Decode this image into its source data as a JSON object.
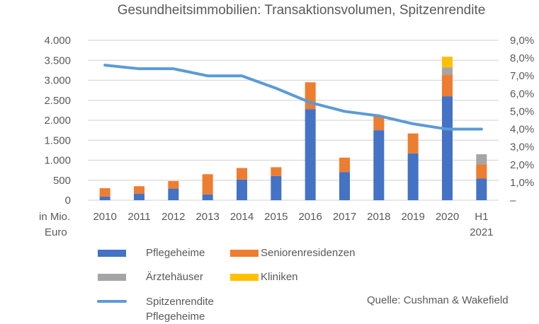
{
  "chart_data": {
    "type": "bar",
    "subtype": "stacked-bar-with-line",
    "title": "Gesundheitsimmobilien: Transaktionsvolumen, Spitzenrendite",
    "xlabel": "",
    "ylabel": "in Mio. Euro",
    "categories": [
      "2010",
      "2011",
      "2012",
      "2013",
      "2014",
      "2015",
      "2016",
      "2017",
      "2018",
      "2019",
      "2020",
      "H1 2021"
    ],
    "ylim": [
      0,
      4000
    ],
    "yticks": [
      0,
      500,
      1000,
      1500,
      2000,
      2500,
      3000,
      3500,
      4000
    ],
    "ytick_labels": [
      "0",
      "500",
      "1.000",
      "1.500",
      "2.000",
      "2.500",
      "3.000",
      "3.500",
      "4.000"
    ],
    "y2lim": [
      0,
      9
    ],
    "y2ticks": [
      0,
      1,
      2,
      3,
      4,
      5,
      6,
      7,
      8,
      9
    ],
    "y2tick_labels": [
      "–",
      "1,0%",
      "2,0%",
      "3,0%",
      "4,0%",
      "5,0%",
      "6,0%",
      "7,0%",
      "8,0%",
      "9,0%"
    ],
    "grid": true,
    "series": [
      {
        "name": "Pflegeheime",
        "kind": "bar",
        "axis": "left",
        "color": "#4472C4",
        "values": [
          90,
          165,
          290,
          145,
          515,
          605,
          2280,
          705,
          1750,
          1170,
          2600,
          540
        ]
      },
      {
        "name": "Seniorenresidenzen",
        "kind": "bar",
        "axis": "left",
        "color": "#ED7D31",
        "values": [
          210,
          185,
          190,
          505,
          290,
          220,
          670,
          360,
          350,
          500,
          540,
          360
        ]
      },
      {
        "name": "Ärztehäuser",
        "kind": "bar",
        "axis": "left",
        "color": "#A5A5A5",
        "values": [
          0,
          0,
          0,
          0,
          0,
          0,
          0,
          0,
          0,
          0,
          180,
          250
        ]
      },
      {
        "name": "Kliniken",
        "kind": "bar",
        "axis": "left",
        "color": "#FFC000",
        "values": [
          0,
          0,
          0,
          0,
          0,
          0,
          0,
          0,
          0,
          0,
          270,
          0
        ]
      },
      {
        "name": "Spitzenrendite Pflegeheime",
        "kind": "line",
        "axis": "right",
        "color": "#5B9BD5",
        "values": [
          7.6,
          7.4,
          7.4,
          7.0,
          7.0,
          6.3,
          5.5,
          5.0,
          4.75,
          4.3,
          4.0,
          4.0
        ]
      }
    ],
    "legend": {
      "placement": "bottom-left",
      "entries": [
        {
          "label": "Pflegeheime",
          "kind": "bar",
          "color": "#4472C4"
        },
        {
          "label": "Seniorenresidenzen",
          "kind": "bar",
          "color": "#ED7D31"
        },
        {
          "label": "Ärztehäuser",
          "kind": "bar",
          "color": "#A5A5A5"
        },
        {
          "label": "Kliniken",
          "kind": "bar",
          "color": "#FFC000"
        },
        {
          "label": "Spitzenrendite Pflegeheime",
          "kind": "line",
          "color": "#5B9BD5"
        }
      ]
    },
    "annotations": [
      "Quelle: Cushman & Wakefield"
    ]
  },
  "labels": {
    "y_unit_line1": "in Mio.",
    "y_unit_line2": "Euro",
    "last_category_line1": "H1",
    "last_category_line2": "2021",
    "legend_line_label_1": "Spitzenrendite",
    "legend_line_label_2": "Pflegeheime",
    "source": "Quelle: Cushman & Wakefield"
  }
}
